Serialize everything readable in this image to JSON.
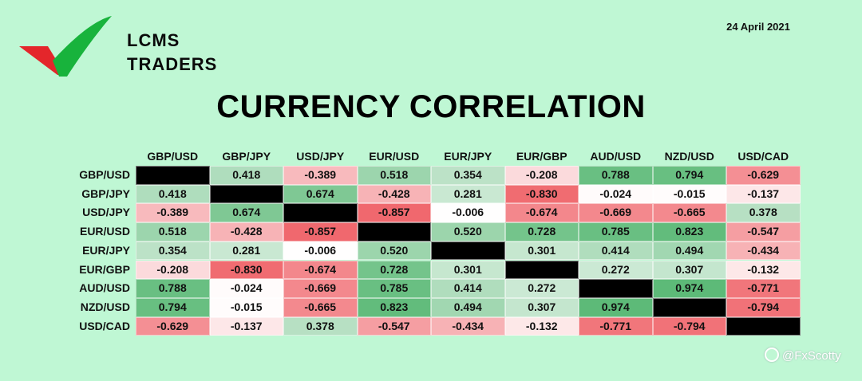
{
  "brand": {
    "line1": "LCMS",
    "line2": "TRADERS",
    "colors": {
      "green": "#18b33c",
      "red": "#e4262b"
    }
  },
  "date": "24 April 2021",
  "watermark": "@FxScotty",
  "chart_data": {
    "type": "heatmap",
    "title": "CURRENCY CORRELATION",
    "columns": [
      "GBP/USD",
      "GBP/JPY",
      "USD/JPY",
      "EUR/USD",
      "EUR/JPY",
      "EUR/GBP",
      "AUD/USD",
      "NZD/USD",
      "USD/CAD"
    ],
    "rows": [
      "GBP/USD",
      "GBP/JPY",
      "USD/JPY",
      "EUR/USD",
      "EUR/JPY",
      "EUR/GBP",
      "AUD/USD",
      "NZD/USD",
      "USD/CAD"
    ],
    "values": [
      [
        null,
        "0.418",
        "-0.389",
        "0.518",
        "0.354",
        "-0.208",
        "0.788",
        "0.794",
        "-0.629"
      ],
      [
        "0.418",
        null,
        "0.674",
        "-0.428",
        "0.281",
        "-0.830",
        "-0.024",
        "-0.015",
        "-0.137"
      ],
      [
        "-0.389",
        "0.674",
        null,
        "-0.857",
        "-0.006",
        "-0.674",
        "-0.669",
        "-0.665",
        "0.378"
      ],
      [
        "0.518",
        "-0.428",
        "-0.857",
        null,
        "0.520",
        "0.728",
        "0.785",
        "0.823",
        "-0.547"
      ],
      [
        "0.354",
        "0.281",
        "-0.006",
        "0.520",
        null,
        "0.301",
        "0.414",
        "0.494",
        "-0.434"
      ],
      [
        "-0.208",
        "-0.830",
        "-0.674",
        "0.728",
        "0.301",
        null,
        "0.272",
        "0.307",
        "-0.132"
      ],
      [
        "0.788",
        "-0.024",
        "-0.669",
        "0.785",
        "0.414",
        "0.272",
        null,
        "0.974",
        "-0.771"
      ],
      [
        "0.794",
        "-0.015",
        "-0.665",
        "0.823",
        "0.494",
        "0.307",
        "0.974",
        null,
        "-0.794"
      ],
      [
        "-0.629",
        "-0.137",
        "0.378",
        "-0.547",
        "-0.434",
        "-0.132",
        "-0.771",
        "-0.794",
        null
      ]
    ],
    "colors": {
      "positive": "#5dba78",
      "negative": "#f0686e",
      "neutral": "#ffffff",
      "diagonal": "#000000"
    }
  }
}
